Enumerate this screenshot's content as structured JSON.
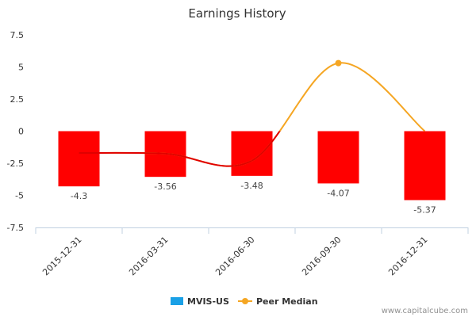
{
  "chart_data": {
    "type": "bar",
    "title": "Earnings History",
    "categories": [
      "2015-12-31",
      "2016-03-31",
      "2016-06-30",
      "2016-09-30",
      "2016-12-31"
    ],
    "ylim": [
      -7.5,
      7.5
    ],
    "yticks": [
      7.5,
      5,
      2.5,
      0,
      -2.5,
      -5,
      -7.5
    ],
    "ytick_labels": [
      "7.5",
      "5",
      "2.5",
      "0",
      "-2.5",
      "-5",
      "-7.5"
    ],
    "series": [
      {
        "name": "MVIS-US",
        "kind": "bar",
        "color": "#ff0000",
        "legend_color": "#1aa0e6",
        "values": [
          -4.3,
          -3.56,
          -3.48,
          -4.07,
          -5.37
        ],
        "labels": [
          "-4.3",
          "-3.56",
          "-3.48",
          "-4.07",
          "-5.37"
        ]
      },
      {
        "name": "Peer Median",
        "kind": "line",
        "color": "#f5a623",
        "below_zero_color": "#e00000",
        "values": [
          -1.7,
          -1.75,
          -2.3,
          5.3,
          0.0
        ],
        "marker_index": 3
      }
    ],
    "legend": "bottom-center",
    "grid": false
  },
  "credit": "www.capitalcube.com"
}
